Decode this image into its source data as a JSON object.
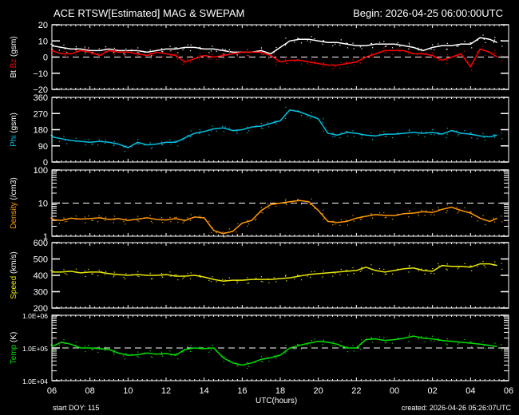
{
  "header": {
    "title": "ACE RTSW[Estimated] MAG & SWEPAM",
    "begin": "Begin: 2026-04-25 06:00:00UTC"
  },
  "footer": {
    "start_doy": "start DOY: 115",
    "created": "created: 2026-04-26 05:26:07UTC",
    "xlabel": "UTC(hours)"
  },
  "colors": {
    "background": "#000000",
    "axis": "#ffffff",
    "bt": "#ffffff",
    "bz": "#ff0000",
    "phi": "#00bfe0",
    "density": "#ff9900",
    "speed": "#e8e800",
    "temp": "#00e000"
  },
  "chart_data": {
    "type": "line",
    "title": "ACE RTSW[Estimated] MAG & SWEPAM",
    "xlabel": "UTC(hours)",
    "x_ticks": [
      "06",
      "08",
      "10",
      "12",
      "14",
      "16",
      "18",
      "20",
      "22",
      "00",
      "02",
      "04",
      "06"
    ],
    "x_hours": [
      0,
      2,
      4,
      6,
      8,
      10,
      12,
      14,
      16,
      18,
      20,
      22,
      23.4
    ],
    "panels": [
      {
        "id": "mag",
        "ylabel_parts": [
          {
            "text": "Bt",
            "color": "#ffffff"
          },
          {
            "text": " Bz",
            "color": "#ff0000"
          },
          {
            "text": " (gsm)",
            "color": "#ffffff"
          }
        ],
        "scale": "linear",
        "ylim": [
          -20,
          20
        ],
        "yticks": [
          20,
          10,
          0,
          -10,
          -20
        ],
        "ytick_labels": [
          "20",
          "10",
          "0",
          "−10",
          "−20"
        ],
        "dashed_ref": 0,
        "series": [
          {
            "name": "Bt",
            "color": "#ffffff",
            "x": [
              0,
              0.5,
              1,
              1.5,
              2,
              2.5,
              3,
              3.5,
              4,
              4.5,
              5,
              5.5,
              6,
              6.5,
              7,
              7.5,
              8,
              8.5,
              9,
              9.5,
              10,
              10.5,
              11,
              11.5,
              12,
              12.5,
              13,
              13.5,
              14,
              14.5,
              15,
              15.5,
              16,
              16.5,
              17,
              17.5,
              18,
              18.5,
              19,
              19.5,
              20,
              20.5,
              21,
              21.5,
              22,
              22.5,
              23,
              23.4
            ],
            "y": [
              7,
              6,
              5,
              5,
              4,
              4,
              5,
              4,
              4,
              4,
              3,
              4,
              5,
              5,
              6,
              6,
              5,
              5,
              4,
              3,
              3,
              3,
              4,
              2,
              6,
              10,
              11,
              11,
              10,
              9,
              9,
              8,
              7,
              7,
              8,
              8,
              8,
              7,
              6,
              4,
              6,
              7,
              7,
              8,
              8,
              12,
              11,
              9
            ]
          },
          {
            "name": "Bz",
            "color": "#ff0000",
            "x": [
              0,
              0.5,
              1,
              1.5,
              2,
              2.5,
              3,
              3.5,
              4,
              4.5,
              5,
              5.5,
              6,
              6.5,
              7,
              7.5,
              8,
              8.5,
              9,
              9.5,
              10,
              10.5,
              11,
              11.5,
              12,
              12.5,
              13,
              13.5,
              14,
              14.5,
              15,
              15.5,
              16,
              16.5,
              17,
              17.5,
              18,
              18.5,
              19,
              19.5,
              20,
              20.5,
              21,
              21.5,
              22,
              22.5,
              23,
              23.4
            ],
            "y": [
              4,
              2,
              2,
              4,
              3,
              1,
              4,
              3,
              3,
              2,
              1,
              3,
              2,
              1,
              -3,
              -1,
              1,
              0,
              1,
              2,
              3,
              3,
              3,
              1,
              -3,
              -2,
              -2,
              -3,
              -4,
              -5,
              -5,
              -4,
              -3,
              0,
              2,
              4,
              4,
              4,
              2,
              2,
              1,
              -2,
              0,
              2,
              -6,
              5,
              3,
              0
            ]
          }
        ]
      },
      {
        "id": "phi",
        "ylabel_parts": [
          {
            "text": "Phi",
            "color": "#00bfe0"
          },
          {
            "text": " (gsm)",
            "color": "#ffffff"
          }
        ],
        "scale": "linear",
        "ylim": [
          0,
          360
        ],
        "yticks": [
          360,
          270,
          180,
          90,
          0
        ],
        "ytick_labels": [
          "360",
          "270",
          "180",
          "90",
          "0"
        ],
        "series": [
          {
            "name": "Phi",
            "color": "#00bfe0",
            "x": [
              0,
              0.5,
              1,
              1.5,
              2,
              2.5,
              3,
              3.5,
              4,
              4.5,
              5,
              5.5,
              6,
              6.5,
              7,
              7.5,
              8,
              8.5,
              9,
              9.5,
              10,
              10.5,
              11,
              11.5,
              12,
              12.5,
              13,
              13.5,
              14,
              14.5,
              15,
              15.5,
              16,
              16.5,
              17,
              17.5,
              18,
              18.5,
              19,
              19.5,
              20,
              20.5,
              21,
              21.5,
              22,
              22.5,
              23,
              23.4
            ],
            "y": [
              140,
              130,
              120,
              115,
              110,
              115,
              110,
              100,
              80,
              110,
              95,
              100,
              110,
              110,
              135,
              160,
              170,
              185,
              190,
              175,
              180,
              195,
              200,
              215,
              230,
              290,
              280,
              260,
              240,
              160,
              150,
              165,
              160,
              150,
              145,
              155,
              155,
              160,
              165,
              160,
              165,
              155,
              175,
              160,
              155,
              145,
              140,
              150
            ]
          }
        ]
      },
      {
        "id": "density",
        "ylabel_parts": [
          {
            "text": "Density",
            "color": "#ff9900"
          },
          {
            "text": " (/cm3)",
            "color": "#ffffff"
          }
        ],
        "scale": "log",
        "ylim": [
          1,
          100
        ],
        "yticks": [
          100,
          10,
          1
        ],
        "ytick_labels": [
          "100",
          "10",
          "1"
        ],
        "dashed_ref": 10,
        "series": [
          {
            "name": "Density",
            "color": "#ff9900",
            "x": [
              0,
              0.5,
              1,
              1.5,
              2,
              2.5,
              3,
              3.5,
              4,
              4.5,
              5,
              5.5,
              6,
              6.5,
              7,
              7.5,
              8,
              8.5,
              9,
              9.5,
              10,
              10.5,
              11,
              11.5,
              12,
              12.5,
              13,
              13.5,
              14,
              14.5,
              15,
              15.5,
              16,
              16.5,
              17,
              17.5,
              18,
              18.5,
              19,
              19.5,
              20,
              20.5,
              21,
              21.5,
              22,
              22.5,
              23,
              23.4
            ],
            "y": [
              3.2,
              3.0,
              3.5,
              3.3,
              3.4,
              3.6,
              3.2,
              3.4,
              3.0,
              3.3,
              3.6,
              3.2,
              3.1,
              3.4,
              3.0,
              3.8,
              3.6,
              1.5,
              1.2,
              1.4,
              2.5,
              3.0,
              6,
              9,
              10,
              11,
              12,
              11,
              6,
              2.8,
              2.6,
              2.8,
              3.5,
              4.0,
              4.5,
              4.3,
              4.2,
              4.8,
              5.0,
              5.5,
              5.2,
              6.5,
              7.5,
              6.0,
              5.0,
              3.5,
              2.8,
              3.5
            ]
          }
        ]
      },
      {
        "id": "speed",
        "ylabel_parts": [
          {
            "text": "Speed",
            "color": "#e8e800"
          },
          {
            "text": " (km/s)",
            "color": "#ffffff"
          }
        ],
        "scale": "linear",
        "ylim": [
          200,
          600
        ],
        "yticks": [
          600,
          500,
          400,
          300,
          200
        ],
        "ytick_labels": [
          "600",
          "500",
          "400",
          "300",
          "200"
        ],
        "series": [
          {
            "name": "Speed",
            "color": "#e8e800",
            "x": [
              0,
              0.5,
              1,
              1.5,
              2,
              2.5,
              3,
              3.5,
              4,
              4.5,
              5,
              5.5,
              6,
              6.5,
              7,
              7.5,
              8,
              8.5,
              9,
              9.5,
              10,
              10.5,
              11,
              11.5,
              12,
              12.5,
              13,
              13.5,
              14,
              14.5,
              15,
              15.5,
              16,
              16.5,
              17,
              17.5,
              18,
              18.5,
              19,
              19.5,
              20,
              20.5,
              21,
              21.5,
              22,
              22.5,
              23,
              23.4
            ],
            "y": [
              420,
              420,
              425,
              415,
              420,
              420,
              410,
              405,
              400,
              405,
              400,
              400,
              405,
              395,
              395,
              400,
              390,
              375,
              365,
              370,
              370,
              375,
              375,
              375,
              380,
              385,
              395,
              405,
              410,
              415,
              420,
              425,
              430,
              450,
              430,
              420,
              430,
              440,
              445,
              430,
              425,
              460,
              455,
              455,
              450,
              470,
              470,
              460
            ]
          }
        ]
      },
      {
        "id": "temp",
        "ylabel_parts": [
          {
            "text": "Temp",
            "color": "#00e000"
          },
          {
            "text": " (K)",
            "color": "#ffffff"
          }
        ],
        "scale": "log",
        "ylim": [
          10000,
          1000000
        ],
        "yticks": [
          1000000,
          100000,
          10000
        ],
        "ytick_labels": [
          "1.0E+06",
          "1.0E+05",
          "1.0E+04"
        ],
        "dashed_ref": 100000,
        "series": [
          {
            "name": "Temp",
            "color": "#00e000",
            "x": [
              0,
              0.5,
              1,
              1.5,
              2,
              2.5,
              3,
              3.5,
              4,
              4.5,
              5,
              5.5,
              6,
              6.5,
              7,
              7.5,
              8,
              8.5,
              9,
              9.5,
              10,
              10.5,
              11,
              11.5,
              12,
              12.5,
              13,
              13.5,
              14,
              14.5,
              15,
              15.5,
              16,
              16.5,
              17,
              17.5,
              18,
              18.5,
              19,
              19.5,
              20,
              20.5,
              21,
              21.5,
              22,
              22.5,
              23,
              23.4
            ],
            "y": [
              110000,
              150000,
              130000,
              100000,
              100000,
              95000,
              90000,
              70000,
              60000,
              62000,
              70000,
              65000,
              68000,
              60000,
              90000,
              100000,
              95000,
              100000,
              50000,
              35000,
              30000,
              35000,
              45000,
              50000,
              60000,
              100000,
              120000,
              140000,
              160000,
              150000,
              130000,
              100000,
              100000,
              180000,
              190000,
              170000,
              180000,
              200000,
              230000,
              200000,
              190000,
              170000,
              160000,
              150000,
              140000,
              130000,
              120000,
              110000
            ]
          }
        ]
      }
    ]
  }
}
